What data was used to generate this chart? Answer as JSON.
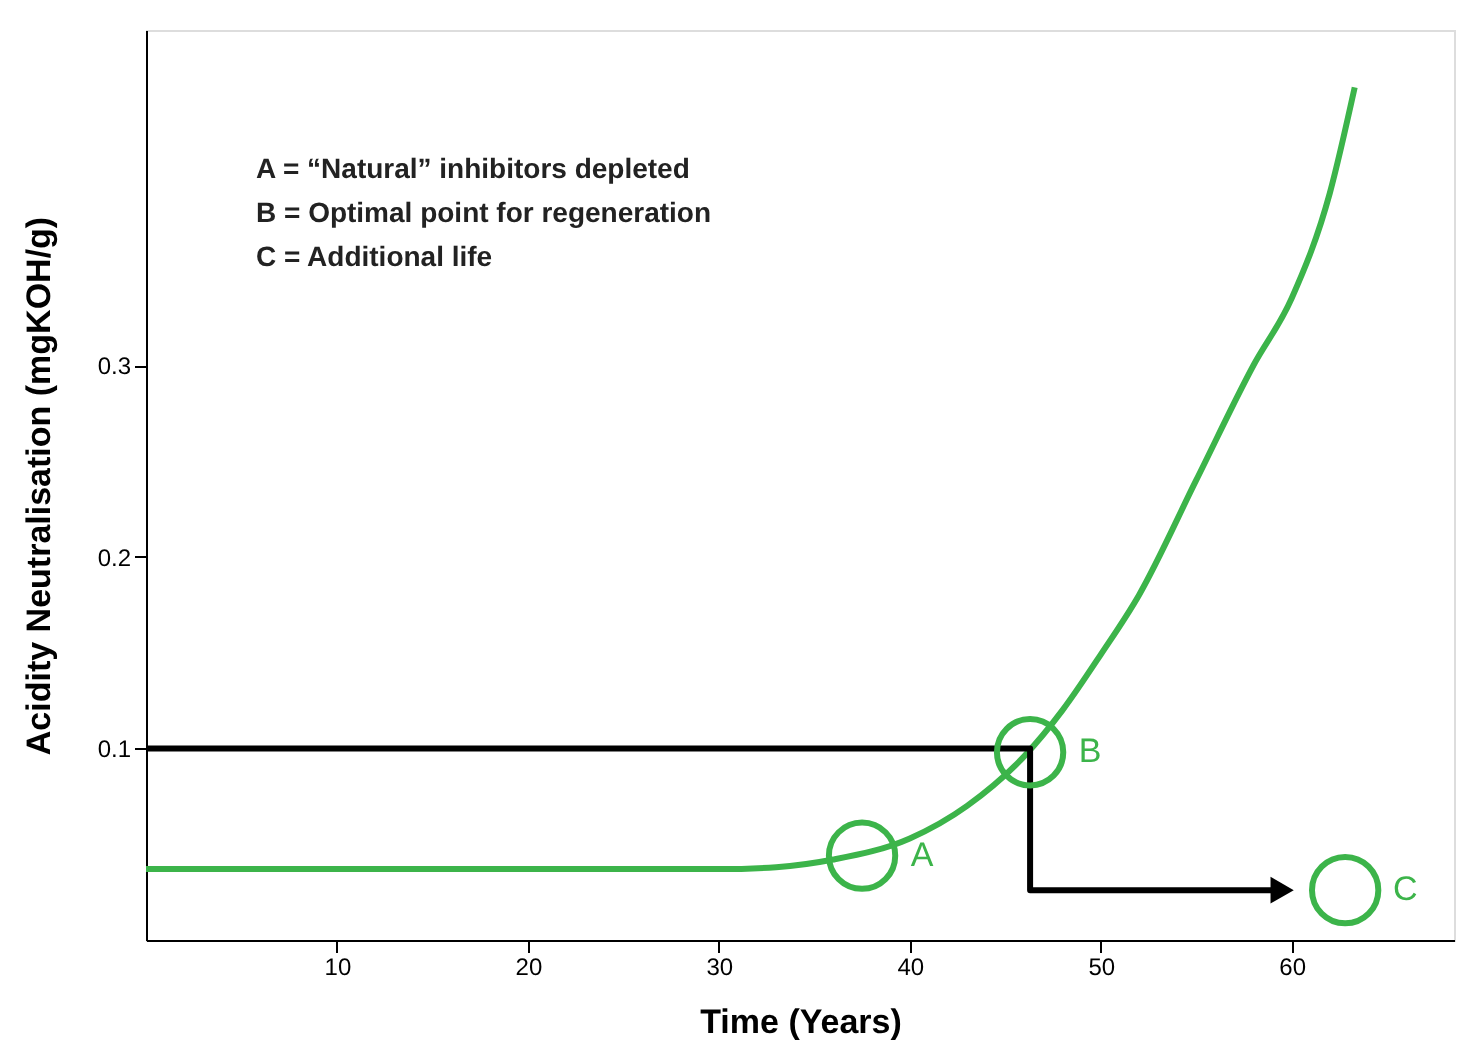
{
  "chart_data": {
    "type": "line",
    "xlabel": "Time (Years)",
    "ylabel": "Acidity Neutralisation (mgKOH/g)",
    "xlim": [
      0,
      68.5
    ],
    "ylim": [
      0,
      0.475
    ],
    "xticks": [
      10,
      20,
      30,
      40,
      50,
      60
    ],
    "yticks": [
      0.1,
      0.2,
      0.3
    ],
    "grid": false,
    "annotations": [
      "A = “Natural” inhibitors depleted",
      "B = Optimal point for regeneration",
      "C = Additional life"
    ],
    "series": [
      {
        "color": "#3cb44a",
        "x": [
          0,
          10,
          20,
          30,
          33,
          36,
          40,
          43,
          46,
          48,
          50,
          52,
          55,
          58,
          60,
          62,
          63.3
        ],
        "values": [
          0.037,
          0.037,
          0.037,
          0.037,
          0.038,
          0.042,
          0.053,
          0.07,
          0.096,
          0.12,
          0.149,
          0.18,
          0.24,
          0.3,
          0.335,
          0.39,
          0.445
        ]
      },
      {
        "type": "line",
        "line_style": "solid",
        "color": "#000000",
        "x": [
          0,
          46.3,
          46.3,
          59.5
        ],
        "values": [
          0.1,
          0.1,
          0.026,
          0.026
        ]
      },
      {
        "type": "scatter",
        "color": "#3cb44a",
        "marker": "circle",
        "x": [
          37.5,
          46.3,
          62.8
        ],
        "values": [
          0.044,
          0.098,
          0.026
        ],
        "value_labels": [
          "A",
          "B",
          "C"
        ]
      }
    ]
  }
}
